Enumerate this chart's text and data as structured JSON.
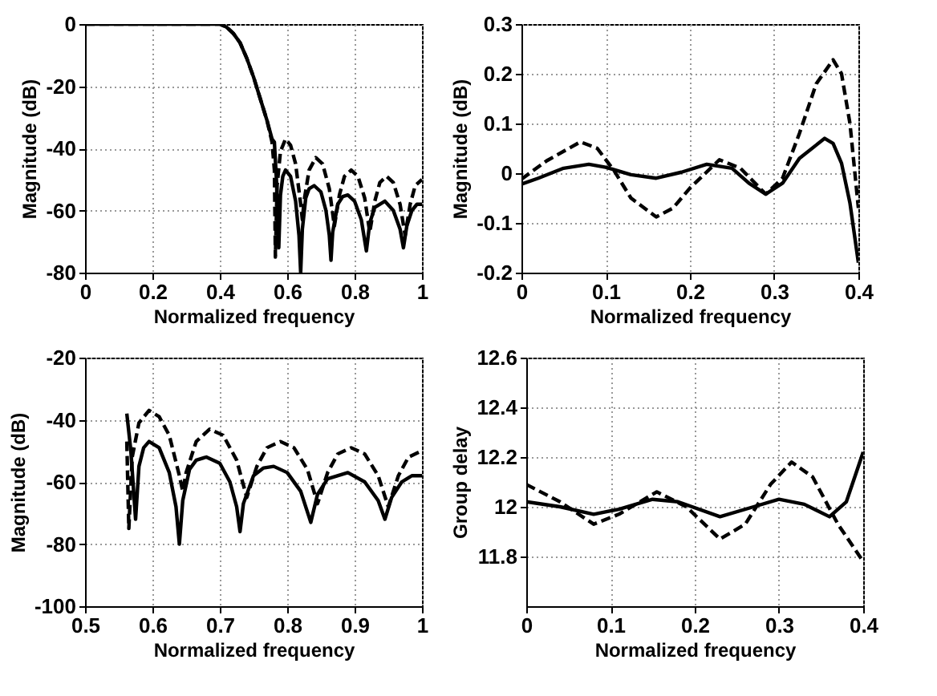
{
  "chart_data": [
    {
      "type": "line",
      "xlabel": "Normalized frequency",
      "ylabel": "Magnitude (dB)",
      "xlim": [
        0,
        1
      ],
      "xticks": [
        0,
        0.2,
        0.4,
        0.6,
        0.8,
        1
      ],
      "ylim": [
        -80,
        0
      ],
      "yticks": [
        -80,
        -60,
        -40,
        -20,
        0
      ],
      "grid": true,
      "series": [
        {
          "color": "#000000",
          "line_style": "solid",
          "x": [
            0,
            0.1,
            0.2,
            0.3,
            0.36,
            0.4,
            0.42,
            0.44,
            0.46,
            0.48,
            0.5,
            0.52,
            0.54,
            0.555,
            0.562,
            0.568,
            0.575,
            0.58,
            0.587,
            0.595,
            0.61,
            0.625,
            0.635,
            0.64,
            0.645,
            0.655,
            0.665,
            0.68,
            0.7,
            0.715,
            0.725,
            0.73,
            0.735,
            0.75,
            0.765,
            0.78,
            0.8,
            0.82,
            0.835,
            0.845,
            0.86,
            0.89,
            0.915,
            0.935,
            0.945,
            0.955,
            0.97,
            0.985,
            1
          ],
          "values": [
            0,
            0,
            0,
            0,
            0,
            0,
            -1,
            -3,
            -6,
            -11,
            -17,
            -24,
            -31,
            -37,
            -38,
            -50,
            -72,
            -55,
            -49,
            -47,
            -49,
            -57,
            -68,
            -80,
            -66,
            -56,
            -53,
            -52,
            -54,
            -60,
            -68,
            -76,
            -67,
            -58,
            -55.5,
            -55,
            -57,
            -63,
            -73,
            -64,
            -59,
            -57,
            -60,
            -66,
            -72,
            -65,
            -60,
            -58,
            -58
          ]
        },
        {
          "color": "#000000",
          "line_style": "dashed",
          "x": [
            0,
            0.1,
            0.2,
            0.3,
            0.37,
            0.4,
            0.42,
            0.44,
            0.46,
            0.48,
            0.5,
            0.52,
            0.54,
            0.555,
            0.562,
            0.565,
            0.57,
            0.58,
            0.595,
            0.61,
            0.625,
            0.64,
            0.645,
            0.65,
            0.665,
            0.685,
            0.705,
            0.725,
            0.74,
            0.755,
            0.77,
            0.79,
            0.81,
            0.83,
            0.845,
            0.86,
            0.875,
            0.895,
            0.915,
            0.935,
            0.95,
            0.965,
            0.98,
            1
          ],
          "values": [
            0,
            0,
            0,
            0,
            0,
            0,
            -1,
            -3,
            -6,
            -11,
            -17,
            -24,
            -31,
            -38,
            -47,
            -75,
            -52,
            -41,
            -37,
            -39,
            -45,
            -58,
            -63,
            -57,
            -47,
            -43,
            -45,
            -53,
            -65,
            -55,
            -49,
            -47,
            -49,
            -56,
            -67,
            -57,
            -51,
            -49,
            -51,
            -58,
            -68,
            -58,
            -52,
            -50
          ]
        }
      ]
    },
    {
      "type": "line",
      "xlabel": "Normalized frequency",
      "ylabel": "Magnitude (dB)",
      "xlim": [
        0,
        0.4
      ],
      "xticks": [
        0,
        0.1,
        0.2,
        0.3,
        0.4
      ],
      "ylim": [
        -0.2,
        0.3
      ],
      "yticks": [
        -0.2,
        -0.1,
        0,
        0.1,
        0.2,
        0.3
      ],
      "grid": true,
      "series": [
        {
          "color": "#000000",
          "line_style": "solid",
          "x": [
            0,
            0.02,
            0.05,
            0.08,
            0.1,
            0.13,
            0.16,
            0.19,
            0.22,
            0.25,
            0.27,
            0.29,
            0.31,
            0.33,
            0.36,
            0.37,
            0.38,
            0.39,
            0.4
          ],
          "values": [
            -0.022,
            -0.01,
            0.01,
            0.018,
            0.012,
            -0.003,
            -0.01,
            0.002,
            0.018,
            0.01,
            -0.02,
            -0.042,
            -0.02,
            0.03,
            0.07,
            0.06,
            0.02,
            -0.06,
            -0.18
          ]
        },
        {
          "color": "#000000",
          "line_style": "dashed",
          "x": [
            0,
            0.03,
            0.07,
            0.09,
            0.11,
            0.13,
            0.16,
            0.18,
            0.2,
            0.235,
            0.26,
            0.29,
            0.31,
            0.33,
            0.35,
            0.37,
            0.38,
            0.39,
            0.4
          ],
          "values": [
            -0.012,
            0.025,
            0.063,
            0.05,
            0.005,
            -0.05,
            -0.088,
            -0.07,
            -0.03,
            0.027,
            0.01,
            -0.042,
            -0.01,
            0.08,
            0.18,
            0.228,
            0.2,
            0.1,
            -0.07
          ]
        }
      ]
    },
    {
      "type": "line",
      "xlabel": "Normalized frequency",
      "ylabel": "Magnitude (dB)",
      "xlim": [
        0.5,
        1
      ],
      "xticks": [
        0.5,
        0.6,
        0.7,
        0.8,
        0.9,
        1
      ],
      "ylim": [
        -100,
        -20
      ],
      "yticks": [
        -100,
        -80,
        -60,
        -40,
        -20
      ],
      "grid": true,
      "series": [
        {
          "color": "#000000",
          "line_style": "solid",
          "x": [
            0.562,
            0.568,
            0.575,
            0.58,
            0.587,
            0.595,
            0.61,
            0.625,
            0.635,
            0.64,
            0.645,
            0.655,
            0.665,
            0.68,
            0.7,
            0.715,
            0.725,
            0.73,
            0.735,
            0.75,
            0.765,
            0.78,
            0.8,
            0.82,
            0.835,
            0.845,
            0.86,
            0.89,
            0.915,
            0.935,
            0.945,
            0.955,
            0.97,
            0.985,
            1
          ],
          "values": [
            -38,
            -50,
            -72,
            -55,
            -49,
            -47,
            -49,
            -57,
            -68,
            -80,
            -66,
            -56,
            -53,
            -52,
            -54,
            -60,
            -68,
            -76,
            -67,
            -58,
            -55.5,
            -55,
            -57,
            -63,
            -73,
            -64,
            -59,
            -57,
            -60,
            -66,
            -72,
            -65,
            -60,
            -58,
            -58
          ]
        },
        {
          "color": "#000000",
          "line_style": "dashed",
          "x": [
            0.562,
            0.565,
            0.57,
            0.58,
            0.595,
            0.61,
            0.625,
            0.64,
            0.645,
            0.65,
            0.665,
            0.685,
            0.705,
            0.725,
            0.74,
            0.755,
            0.77,
            0.79,
            0.81,
            0.83,
            0.845,
            0.86,
            0.875,
            0.895,
            0.915,
            0.935,
            0.95,
            0.965,
            0.98,
            1
          ],
          "values": [
            -47,
            -75,
            -52,
            -41,
            -37,
            -39,
            -45,
            -58,
            -63,
            -57,
            -47,
            -43,
            -45,
            -53,
            -65,
            -55,
            -49,
            -47,
            -49,
            -56,
            -67,
            -57,
            -51,
            -49,
            -51,
            -58,
            -68,
            -58,
            -52,
            -50
          ]
        }
      ]
    },
    {
      "type": "line",
      "xlabel": "Normalized frequency",
      "ylabel": "Group delay",
      "xlim": [
        0,
        0.4
      ],
      "xticks": [
        0,
        0.1,
        0.2,
        0.3,
        0.4
      ],
      "ylim": [
        11.6,
        12.6
      ],
      "yticks": [
        11.8,
        12,
        12.2,
        12.4,
        12.6
      ],
      "grid": true,
      "series": [
        {
          "color": "#000000",
          "line_style": "solid",
          "x": [
            0,
            0.04,
            0.08,
            0.11,
            0.15,
            0.18,
            0.23,
            0.27,
            0.3,
            0.33,
            0.36,
            0.38,
            0.4
          ],
          "values": [
            12.02,
            12.0,
            11.97,
            11.99,
            12.03,
            12.02,
            11.96,
            12.0,
            12.03,
            12.01,
            11.96,
            12.02,
            12.22
          ]
        },
        {
          "color": "#000000",
          "line_style": "dashed",
          "x": [
            0,
            0.04,
            0.08,
            0.11,
            0.155,
            0.19,
            0.23,
            0.26,
            0.29,
            0.315,
            0.34,
            0.37,
            0.4
          ],
          "values": [
            12.09,
            12.02,
            11.93,
            11.97,
            12.06,
            12.0,
            11.87,
            11.93,
            12.09,
            12.18,
            12.12,
            11.93,
            11.78
          ]
        }
      ]
    }
  ]
}
